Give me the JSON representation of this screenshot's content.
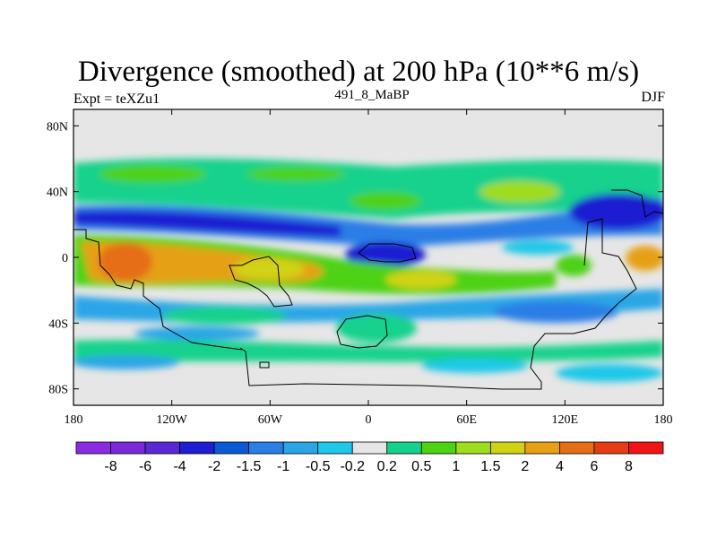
{
  "header": {
    "title": "Divergence (smoothed) at 200 hPa (10**6 m/s)",
    "left_label": "Expt = teXZu1",
    "center_label": "491_8_MaBP",
    "right_label": "DJF"
  },
  "axes": {
    "lat_ticks": [
      {
        "value": 80,
        "label": "80N"
      },
      {
        "value": 40,
        "label": "40N"
      },
      {
        "value": 0,
        "label": "0"
      },
      {
        "value": -40,
        "label": "40S"
      },
      {
        "value": -80,
        "label": "80S"
      }
    ],
    "lon_ticks": [
      {
        "value": -180,
        "label": "180"
      },
      {
        "value": -120,
        "label": "120W"
      },
      {
        "value": -60,
        "label": "60W"
      },
      {
        "value": 0,
        "label": "0"
      },
      {
        "value": 60,
        "label": "60E"
      },
      {
        "value": 120,
        "label": "120E"
      },
      {
        "value": 180,
        "label": "180"
      }
    ],
    "lon_range": [
      -180,
      180
    ],
    "lat_range": [
      -90,
      90
    ]
  },
  "colorbar": {
    "colors": [
      "#8a2be2",
      "#7a28d8",
      "#5a28d4",
      "#1e1ed2",
      "#0a5ad6",
      "#2a7ee6",
      "#2aa6e6",
      "#1ec8e8",
      "#e6e6e6",
      "#14d28c",
      "#4ed214",
      "#a0dc1e",
      "#d2d214",
      "#e6a014",
      "#e66e14",
      "#e63c14",
      "#f01414"
    ],
    "labels": [
      "-8",
      "-6",
      "-4",
      "-2",
      "-1.5",
      "-1",
      "-0.5",
      "-0.2",
      "0.2",
      "0.5",
      "1",
      "1.5",
      "2",
      "4",
      "6",
      "8"
    ]
  }
}
